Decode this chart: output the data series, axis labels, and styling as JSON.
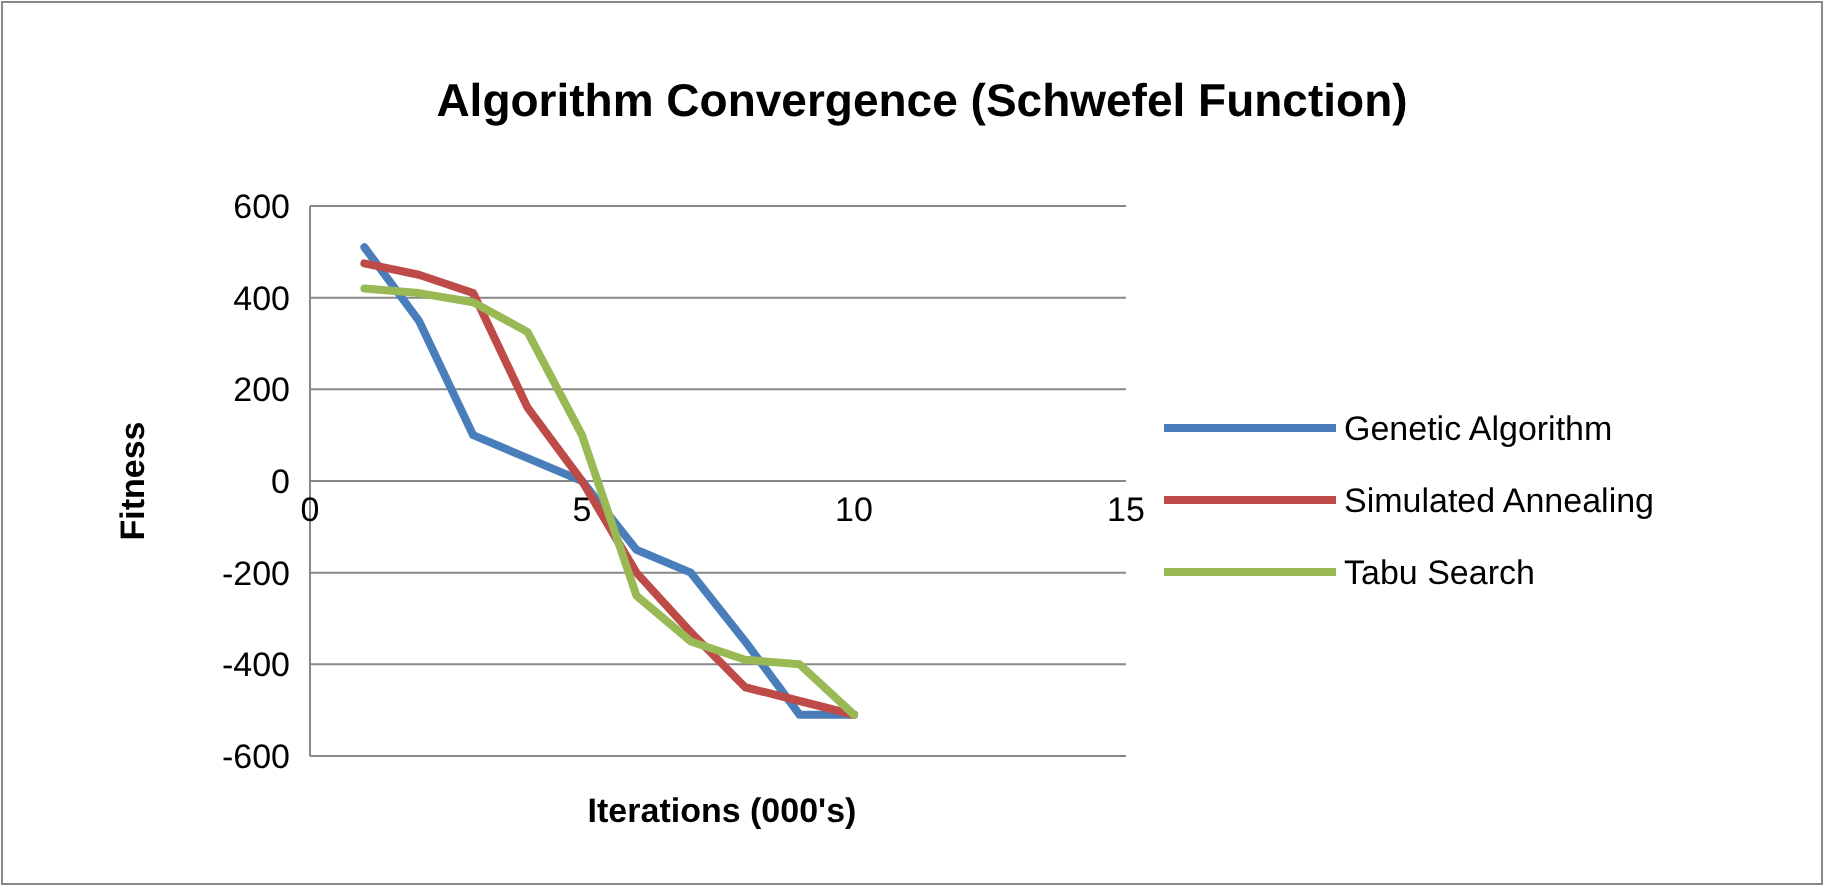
{
  "chart_data": {
    "type": "line",
    "title": "Algorithm Convergence (Schwefel Function)",
    "xlabel": "Iterations (000's)",
    "ylabel": "Fitness",
    "x": [
      1,
      2,
      3,
      4,
      5,
      6,
      7,
      8,
      9,
      10
    ],
    "xlim": [
      0,
      15
    ],
    "xticks": [
      0,
      5,
      10,
      15
    ],
    "ylim": [
      -600,
      600
    ],
    "yticks": [
      -600,
      -400,
      -200,
      0,
      200,
      400,
      600
    ],
    "grid": "y",
    "legend": "right",
    "marker": "none",
    "series": [
      {
        "name": "Genetic Algorithm",
        "color": "#4a7ebb",
        "values": [
          510,
          350,
          100,
          50,
          0,
          -150,
          -200,
          -350,
          -510,
          -510
        ]
      },
      {
        "name": "Simulated Annealing",
        "color": "#be4b48",
        "values": [
          475,
          450,
          410,
          160,
          0,
          -200,
          -330,
          -450,
          -480,
          -510
        ]
      },
      {
        "name": "Tabu Search",
        "color": "#98b954",
        "values": [
          420,
          410,
          390,
          325,
          100,
          -250,
          -350,
          -390,
          -400,
          -510
        ]
      }
    ]
  }
}
